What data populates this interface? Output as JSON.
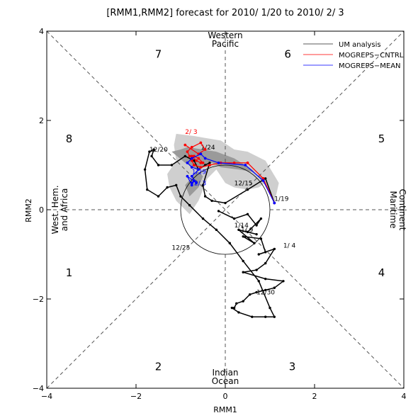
{
  "chart_data": {
    "type": "line",
    "title": "[RMM1,RMM2] forecast for 2010/ 1/20 to 2010/ 2/ 3",
    "xlabel": "RMM1",
    "ylabel": "RMM2",
    "xlim": [
      -4,
      4
    ],
    "ylim": [
      -4,
      4
    ],
    "xticks": [
      -4,
      -2,
      0,
      2,
      4
    ],
    "yticks": [
      -4,
      -2,
      0,
      2,
      4
    ],
    "phases": [
      {
        "label": "1",
        "x": -3.5,
        "y": -1.4
      },
      {
        "label": "2",
        "x": -1.5,
        "y": -3.5
      },
      {
        "label": "3",
        "x": 1.5,
        "y": -3.5
      },
      {
        "label": "4",
        "x": 3.5,
        "y": -1.4
      },
      {
        "label": "5",
        "x": 3.5,
        "y": 1.6
      },
      {
        "label": "6",
        "x": 1.4,
        "y": 3.5
      },
      {
        "label": "7",
        "x": -1.5,
        "y": 3.5
      },
      {
        "label": "8",
        "x": -3.5,
        "y": 1.6
      }
    ],
    "regions": {
      "top": [
        "Western",
        "Pacific"
      ],
      "bottom": [
        "Indian",
        "Ocean"
      ],
      "left": [
        "West. Hem.",
        "and Africa"
      ],
      "right": [
        "Maritime",
        "Continent"
      ]
    },
    "legend": {
      "position": "top-right",
      "items": [
        {
          "label": "UM analysis",
          "color": "#5a5a5a"
        },
        {
          "label": "MOGREPS−CNTRL",
          "color": "#ff3a3a"
        },
        {
          "label": "MOGREPS−MEAN",
          "color": "#3a3aff"
        }
      ]
    },
    "series": [
      {
        "name": "UM analysis",
        "color": "#000000",
        "x": [
          -0.15,
          0.2,
          0.5,
          0.7,
          0.8,
          0.5,
          0.7,
          0.3,
          0.65,
          0.4,
          0.8,
          0.9,
          0.75,
          1.1,
          0.9,
          0.7,
          0.4,
          0.9,
          1.3,
          1.1,
          0.9,
          0.7,
          0.55,
          0.4,
          0.25,
          0.2,
          0.15,
          0.3,
          0.6,
          0.9,
          1.1,
          1.0,
          0.75,
          0.4,
          0.1,
          -0.2,
          -0.5,
          -0.8,
          -1.0,
          -1.1,
          -1.3,
          -1.5,
          -1.75,
          -1.8,
          -1.7,
          -1.6,
          -1.65,
          -1.5,
          -1.2,
          -0.9,
          -0.7,
          -0.6,
          -0.45,
          -0.35,
          -0.5,
          -0.45,
          -0.3,
          0.0,
          0.5,
          0.9,
          1.1
        ],
        "y": [
          -0.03,
          -0.2,
          -0.1,
          -0.35,
          -0.2,
          -0.5,
          -0.55,
          -0.45,
          -0.75,
          -0.6,
          -0.65,
          -0.95,
          -1.0,
          -0.88,
          -1.2,
          -1.35,
          -1.4,
          -1.55,
          -1.6,
          -1.75,
          -1.8,
          -1.85,
          -1.9,
          -2.05,
          -2.1,
          -2.2,
          -2.2,
          -2.3,
          -2.4,
          -2.4,
          -2.4,
          -2.2,
          -1.6,
          -1.15,
          -0.75,
          -0.45,
          -0.2,
          0.1,
          0.3,
          0.55,
          0.5,
          0.3,
          0.45,
          0.9,
          1.3,
          1.35,
          1.2,
          1.0,
          1.0,
          1.2,
          1.1,
          0.9,
          1.0,
          1.05,
          0.55,
          0.3,
          0.2,
          0.15,
          0.45,
          0.7,
          0.15
        ],
        "labels": [
          {
            "text": "12/20",
            "x": -1.7,
            "y": 1.3
          },
          {
            "text": "12/25",
            "x": -1.2,
            "y": -0.9
          },
          {
            "text": "12/30",
            "x": 0.7,
            "y": -1.9
          },
          {
            "text": "1/ 4",
            "x": 1.3,
            "y": -0.85
          },
          {
            "text": "1/ 9",
            "x": 0.35,
            "y": -0.5
          },
          {
            "text": "1/14",
            "x": 0.2,
            "y": -0.4
          },
          {
            "text": "1/19",
            "x": 1.1,
            "y": 0.2
          },
          {
            "text": "12/15",
            "x": 0.2,
            "y": 0.55
          },
          {
            "text": "1/24",
            "x": -0.55,
            "y": 1.35
          }
        ]
      },
      {
        "name": "MOGREPS−CNTRL",
        "color": "#ff0000",
        "x": [
          1.1,
          0.85,
          0.5,
          0.2,
          -0.1,
          -0.35,
          -0.55,
          -0.7,
          -0.75,
          -0.7,
          -0.6,
          -0.5,
          -0.55,
          -0.65,
          -0.75,
          -0.8,
          -0.85,
          -0.75,
          -0.55,
          -0.45,
          -0.6,
          -0.9
        ],
        "y": [
          0.15,
          0.7,
          1.05,
          1.05,
          1.05,
          1.0,
          0.95,
          1.0,
          1.1,
          1.2,
          1.15,
          1.05,
          1.05,
          1.1,
          1.2,
          1.2,
          1.3,
          1.4,
          1.5,
          1.35,
          1.25,
          1.45
        ],
        "labels": [
          {
            "text": "2/ 3",
            "x": -0.9,
            "y": 1.7
          }
        ]
      },
      {
        "name": "MOGREPS−MEAN",
        "color": "#0000ff",
        "x": [
          1.1,
          0.85,
          0.45,
          -0.15,
          -0.45,
          -0.55,
          -0.75,
          -0.85,
          -0.75,
          -0.6,
          -0.75,
          -0.65,
          -0.85,
          -0.75,
          -0.7,
          -0.75
        ],
        "y": [
          0.15,
          0.65,
          1.0,
          1.05,
          1.15,
          1.25,
          1.15,
          1.05,
          0.95,
          0.9,
          0.75,
          0.6,
          0.75,
          0.55,
          0.65,
          0.6
        ],
        "labels": [
          {
            "text": "1/29",
            "x": -0.75,
            "y": 0.8
          },
          {
            "text": "2/ 3",
            "x": -0.7,
            "y": 0.55
          }
        ]
      }
    ],
    "spread_regions": [
      {
        "name": "light",
        "color": "#cfcfcf",
        "x": [
          1.1,
          1.2,
          0.9,
          0.5,
          0.2,
          -0.1,
          -0.4,
          -0.7,
          -1.1,
          -1.15,
          -1.1,
          -1.3,
          -1.25,
          -1.1,
          -0.8,
          -0.6,
          -0.4,
          -0.2,
          0.0,
          0.2,
          0.5,
          0.75,
          0.9,
          1.1
        ],
        "y": [
          0.15,
          0.6,
          1.1,
          1.3,
          1.35,
          1.55,
          1.6,
          1.65,
          1.7,
          1.45,
          1.1,
          0.8,
          0.5,
          0.2,
          -0.1,
          0.2,
          0.7,
          0.9,
          0.6,
          0.5,
          0.45,
          0.5,
          0.6,
          0.15
        ]
      },
      {
        "name": "dark",
        "color": "#9a9a9a",
        "x": [
          1.1,
          0.95,
          0.6,
          0.2,
          -0.2,
          -0.5,
          -0.85,
          -1.0,
          -1.2,
          -0.9,
          -0.7,
          -0.5,
          -0.6,
          -0.8,
          -0.9,
          -0.6,
          -0.3,
          -0.1,
          0.3,
          0.6,
          0.85,
          1.1
        ],
        "y": [
          0.15,
          0.5,
          0.9,
          1.15,
          1.3,
          1.35,
          1.4,
          1.35,
          1.3,
          1.05,
          0.95,
          0.75,
          0.5,
          0.3,
          0.55,
          0.9,
          1.05,
          0.95,
          0.9,
          0.85,
          0.7,
          0.15
        ]
      }
    ]
  }
}
